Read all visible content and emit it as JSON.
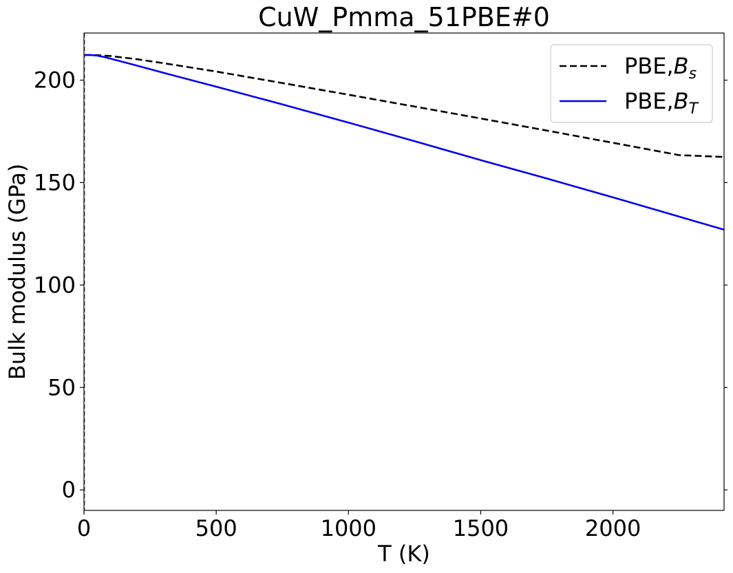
{
  "chart_data": {
    "type": "line",
    "title": "CuW_Pmma_51PBE#0",
    "xlabel": "T (K)",
    "ylabel": "Bulk modulus (GPa)",
    "xlim": [
      0,
      2420
    ],
    "ylim": [
      -10,
      223
    ],
    "xticks": [
      0,
      500,
      1000,
      1500,
      2000
    ],
    "yticks": [
      0,
      50,
      100,
      150,
      200
    ],
    "legend_position": "upper right",
    "series": [
      {
        "name": "PBE,B_s",
        "label_main": "PBE,",
        "label_symbol": "B",
        "label_sub": "s",
        "color": "#000000",
        "style": "dashed",
        "x": [
          0,
          50,
          100,
          200,
          300,
          500,
          750,
          1000,
          1250,
          1500,
          1750,
          2000,
          2250,
          2420
        ],
        "y": [
          212.3,
          212.2,
          211.8,
          210.2,
          208.3,
          204.2,
          198.6,
          192.9,
          187.1,
          181.3,
          175.4,
          169.4,
          163.4,
          162.5
        ]
      },
      {
        "name": "PBE,B_T",
        "label_main": "PBE,",
        "label_symbol": "B",
        "label_sub": "T",
        "color": "#0000ee",
        "style": "solid",
        "x": [
          0,
          25,
          50,
          75,
          100,
          150,
          200,
          300,
          500,
          750,
          1000,
          1250,
          1500,
          1750,
          2000,
          2250,
          2420
        ],
        "y": [
          212.3,
          212.3,
          212.0,
          211.3,
          210.5,
          208.8,
          207.1,
          203.6,
          196.8,
          188.2,
          179.3,
          170.2,
          161.0,
          152.0,
          142.8,
          133.4,
          127.0
        ]
      }
    ]
  }
}
